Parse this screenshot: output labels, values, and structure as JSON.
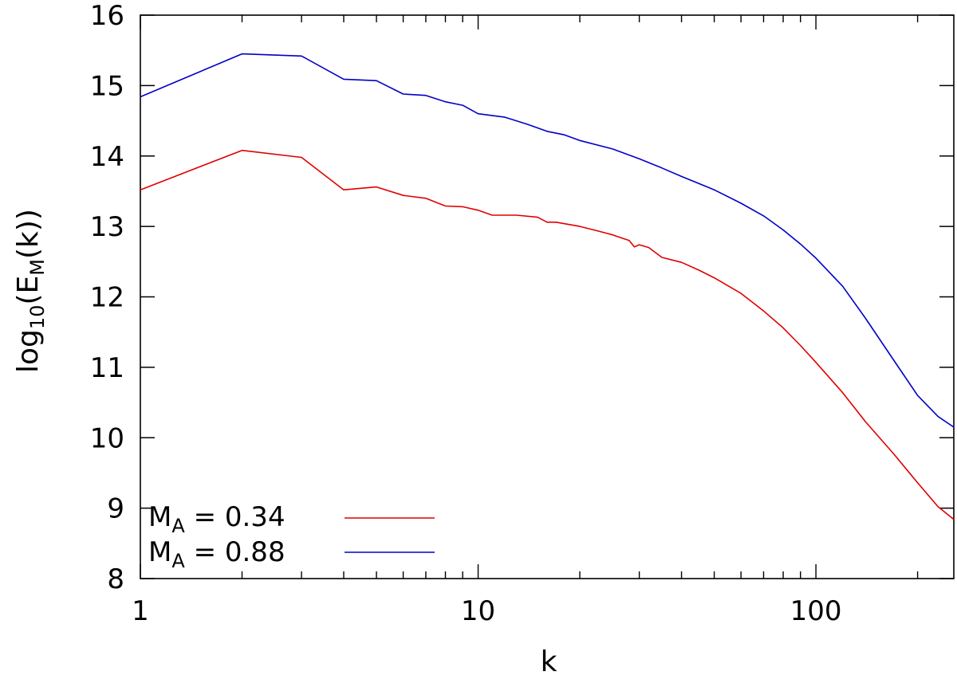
{
  "chart_data": {
    "type": "line",
    "xlabel": "k",
    "ylabel": {
      "prefix": "log",
      "sub1": "10",
      "mid": "(E",
      "sub2": "M",
      "suffix": "(k))"
    },
    "x_scale": "log",
    "xlim": [
      1,
      256
    ],
    "ylim": [
      8,
      16
    ],
    "x_ticks": [
      1,
      10,
      100
    ],
    "y_ticks": [
      8,
      9,
      10,
      11,
      12,
      13,
      14,
      15,
      16
    ],
    "grid": false,
    "legend_position": "bottom-left",
    "series": [
      {
        "legend": {
          "base": "M",
          "sub": "A",
          "rest": " = 0.34"
        },
        "color": "#e00000",
        "points": [
          [
            1,
            13.52
          ],
          [
            2,
            14.08
          ],
          [
            3,
            13.98
          ],
          [
            4,
            13.52
          ],
          [
            5,
            13.56
          ],
          [
            6,
            13.44
          ],
          [
            7,
            13.4
          ],
          [
            8,
            13.29
          ],
          [
            9,
            13.28
          ],
          [
            10,
            13.23
          ],
          [
            11,
            13.16
          ],
          [
            13,
            13.16
          ],
          [
            15,
            13.13
          ],
          [
            16,
            13.06
          ],
          [
            17,
            13.06
          ],
          [
            20,
            13.0
          ],
          [
            22,
            12.95
          ],
          [
            25,
            12.88
          ],
          [
            28,
            12.8
          ],
          [
            29,
            12.71
          ],
          [
            30,
            12.74
          ],
          [
            32,
            12.7
          ],
          [
            35,
            12.56
          ],
          [
            40,
            12.49
          ],
          [
            45,
            12.38
          ],
          [
            50,
            12.27
          ],
          [
            60,
            12.05
          ],
          [
            70,
            11.8
          ],
          [
            80,
            11.56
          ],
          [
            90,
            11.31
          ],
          [
            100,
            11.07
          ],
          [
            120,
            10.64
          ],
          [
            140,
            10.23
          ],
          [
            170,
            9.77
          ],
          [
            200,
            9.36
          ],
          [
            230,
            9.02
          ],
          [
            256,
            8.84
          ]
        ]
      },
      {
        "legend": {
          "base": "M",
          "sub": "A",
          "rest": " = 0.88"
        },
        "color": "#0000c8",
        "points": [
          [
            1,
            14.84
          ],
          [
            2,
            15.45
          ],
          [
            3,
            15.42
          ],
          [
            4,
            15.09
          ],
          [
            5,
            15.07
          ],
          [
            6,
            14.88
          ],
          [
            7,
            14.86
          ],
          [
            8,
            14.77
          ],
          [
            9,
            14.72
          ],
          [
            10,
            14.6
          ],
          [
            12,
            14.55
          ],
          [
            14,
            14.45
          ],
          [
            16,
            14.35
          ],
          [
            18,
            14.3
          ],
          [
            20,
            14.22
          ],
          [
            25,
            14.1
          ],
          [
            30,
            13.96
          ],
          [
            35,
            13.83
          ],
          [
            40,
            13.71
          ],
          [
            50,
            13.52
          ],
          [
            60,
            13.33
          ],
          [
            70,
            13.15
          ],
          [
            80,
            12.95
          ],
          [
            90,
            12.75
          ],
          [
            100,
            12.55
          ],
          [
            120,
            12.15
          ],
          [
            140,
            11.7
          ],
          [
            170,
            11.1
          ],
          [
            200,
            10.6
          ],
          [
            230,
            10.3
          ],
          [
            256,
            10.15
          ]
        ]
      }
    ]
  }
}
